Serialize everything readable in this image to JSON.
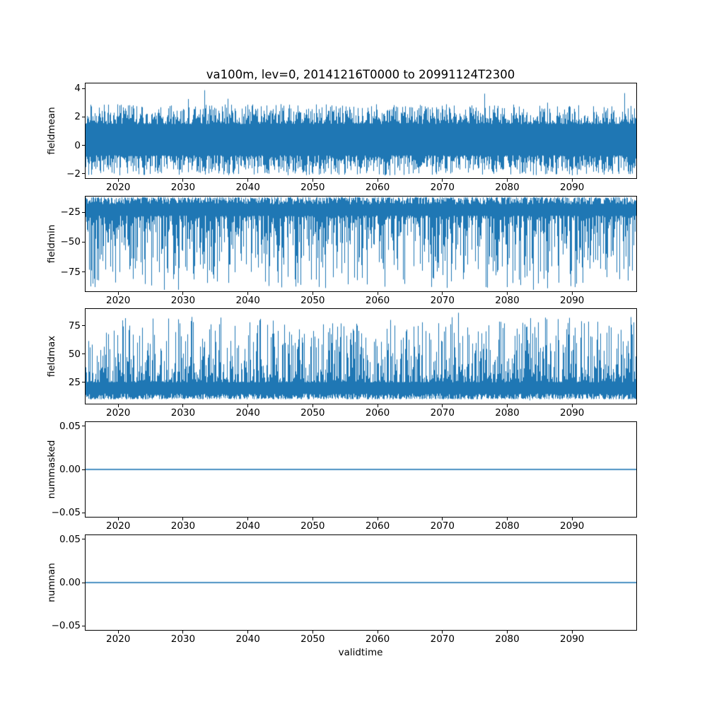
{
  "chart_data": {
    "type": "line",
    "title": "va100m, lev=0, 20141216T0000 to 20991124T2300",
    "xlabel": "validtime",
    "line_color": "#1f77b4",
    "grid": false,
    "legend": "none",
    "x_axis": {
      "min": 2014.96,
      "max": 2099.9,
      "ticks": [
        {
          "v": 2020,
          "label": "2020"
        },
        {
          "v": 2030,
          "label": "2030"
        },
        {
          "v": 2040,
          "label": "2040"
        },
        {
          "v": 2050,
          "label": "2050"
        },
        {
          "v": 2060,
          "label": "2060"
        },
        {
          "v": 2070,
          "label": "2070"
        },
        {
          "v": 2080,
          "label": "2080"
        },
        {
          "v": 2090,
          "label": "2090"
        }
      ]
    },
    "subplots": [
      {
        "ylabel": "fieldmean",
        "y_min": -2.3,
        "y_max": 4.35,
        "y_ticks": [
          {
            "v": -2,
            "label": "−2"
          },
          {
            "v": 0,
            "label": "0"
          },
          {
            "v": 2,
            "label": "2"
          },
          {
            "v": 4,
            "label": "4"
          }
        ],
        "series": {
          "kind": "noise-band",
          "summary": "dense high-frequency signal oscillating around ~0.5, typical envelope −1.9 to +2.9, rare extremes −2.3 and +3.9",
          "high": {
            "base": 1.5,
            "var": 1.4,
            "pow": 1.5
          },
          "low": {
            "base": -0.7,
            "var": -1.4,
            "pow": 1.5
          },
          "extremes": {
            "prob": 0.006,
            "low": -2.33,
            "high": 3.93
          }
        }
      },
      {
        "ylabel": "fieldmin",
        "y_min": -91,
        "y_max": -12,
        "y_ticks": [
          {
            "v": -25,
            "label": "−25"
          },
          {
            "v": -50,
            "label": "−50"
          },
          {
            "v": -75,
            "label": "−75"
          }
        ],
        "series": {
          "kind": "noise-band",
          "summary": "dense band near −13 to −42 with frequent downward spikes reaching ≈ −90",
          "high": {
            "base": -12.5,
            "var": -6,
            "pow": 2
          },
          "low": {
            "base": -28,
            "var": -62,
            "pow": 2.2
          },
          "extremes": {
            "prob": 0.004,
            "low": -90.5,
            "high": -12.2
          }
        }
      },
      {
        "ylabel": "fieldmax",
        "y_min": 6,
        "y_max": 90,
        "y_ticks": [
          {
            "v": 25,
            "label": "25"
          },
          {
            "v": 50,
            "label": "50"
          },
          {
            "v": 75,
            "label": "75"
          }
        ],
        "series": {
          "kind": "noise-band",
          "summary": "dense band near 10 to 38 with frequent upward spikes reaching ≈ 85",
          "high": {
            "base": 25,
            "var": 58,
            "pow": 2.2
          },
          "low": {
            "base": 10,
            "var": 5,
            "pow": 2
          },
          "extremes": {
            "prob": 0.004,
            "low": 8.5,
            "high": 87
          }
        }
      },
      {
        "ylabel": "nummasked",
        "y_min": -0.0545,
        "y_max": 0.0545,
        "y_ticks": [
          {
            "v": -0.05,
            "label": "−0.05"
          },
          {
            "v": 0,
            "label": "0.00"
          },
          {
            "v": 0.05,
            "label": "0.05"
          }
        ],
        "series": {
          "kind": "constant",
          "value": 0,
          "summary": "constant zero line over full time range"
        }
      },
      {
        "ylabel": "numnan",
        "y_min": -0.0545,
        "y_max": 0.0545,
        "y_ticks": [
          {
            "v": -0.05,
            "label": "−0.05"
          },
          {
            "v": 0,
            "label": "0.00"
          },
          {
            "v": 0.05,
            "label": "0.05"
          }
        ],
        "series": {
          "kind": "constant",
          "value": 0,
          "summary": "constant zero line over full time range"
        }
      }
    ]
  }
}
